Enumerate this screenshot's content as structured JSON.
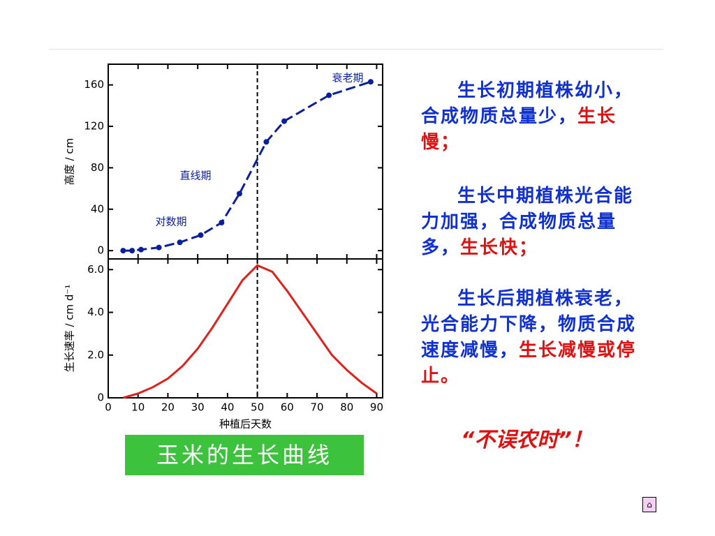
{
  "chart_data": [
    {
      "type": "line",
      "ylabel": "高度 / cm",
      "dashed": true,
      "markers": true,
      "color": "#0a1f9c",
      "x": [
        5,
        8,
        11,
        17,
        24,
        31,
        38,
        44,
        53,
        59,
        74,
        88
      ],
      "values": [
        0,
        0,
        1,
        3,
        8,
        15,
        27,
        55,
        105,
        125,
        150,
        163
      ],
      "xlim": [
        0,
        92
      ],
      "xticks": [
        0,
        10,
        20,
        30,
        40,
        50,
        60,
        70,
        80,
        90
      ],
      "show_xtick_labels": false,
      "ylim": [
        -8,
        180
      ],
      "yticks": [
        0,
        40,
        80,
        120,
        160
      ],
      "vline": 50,
      "annotations": [
        "衰老期",
        "直线期",
        "对数期"
      ]
    },
    {
      "type": "line",
      "ylabel": "生长速率 / cm d⁻¹",
      "xlabel": "种植后天数",
      "dashed": false,
      "markers": false,
      "color": "#e0201a",
      "x": [
        5,
        10,
        15,
        20,
        25,
        30,
        35,
        40,
        45,
        50,
        55,
        60,
        65,
        70,
        75,
        80,
        85,
        90
      ],
      "values": [
        0,
        0.2,
        0.5,
        0.9,
        1.5,
        2.3,
        3.3,
        4.4,
        5.5,
        6.2,
        5.9,
        5.0,
        4.0,
        3.0,
        2.0,
        1.3,
        0.7,
        0.2
      ],
      "xlim": [
        0,
        92
      ],
      "xticks": [
        0,
        10,
        20,
        30,
        40,
        50,
        60,
        70,
        80,
        90
      ],
      "show_xtick_labels": true,
      "ylim": [
        0,
        6.5
      ],
      "yticks": [
        {
          "value": 0,
          "label": "0"
        },
        {
          "value": 2,
          "label": "2.0"
        },
        {
          "value": 4,
          "label": "4.0"
        },
        {
          "value": 6,
          "label": "6.0"
        }
      ],
      "vline": 50
    }
  ],
  "caption": "玉米的生长曲线",
  "text_panel": {
    "paragraphs": [
      [
        {
          "text": "生长初期植株幼小，合成物质总量少，",
          "color": "#1030d0"
        },
        {
          "text": "生长慢；",
          "color": "#e01010"
        }
      ],
      [
        {
          "text": "生长中期植株光合能力加强，合成物质总量多，",
          "color": "#1030d0"
        },
        {
          "text": "生长快；",
          "color": "#e01010"
        }
      ],
      [
        {
          "text": "生长后期植株衰老，光合能力下降，物质合成速度减慢，",
          "color": "#1030d0"
        },
        {
          "text": "生长减慢或停止。",
          "color": "#e01010"
        }
      ]
    ],
    "slogan": "“不误农时”！"
  }
}
